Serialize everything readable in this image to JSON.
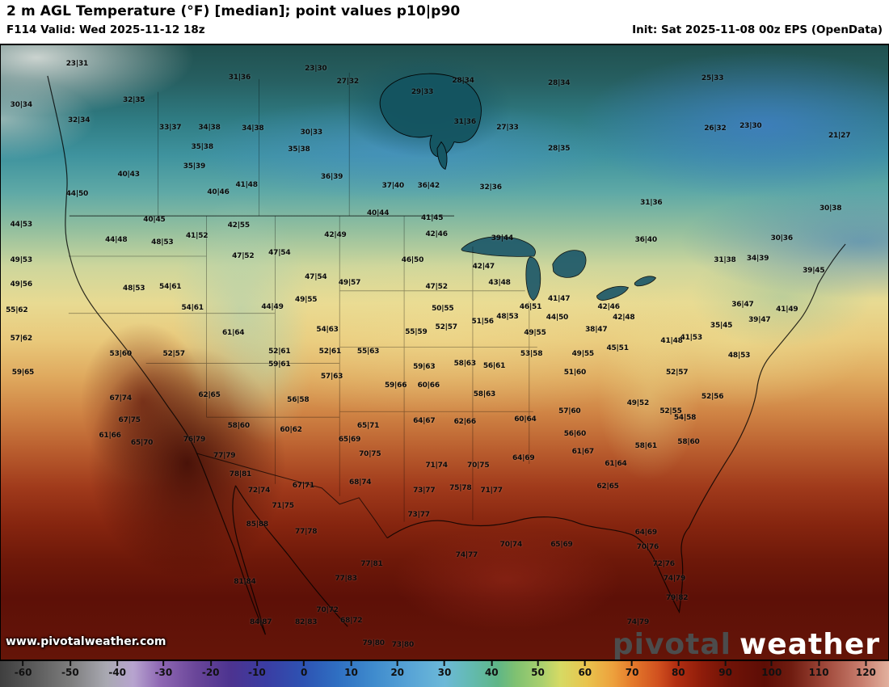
{
  "header": {
    "title": "2 m AGL Temperature (°F) [median]; point values p10|p90",
    "valid": "F114 Valid: Wed 2025-11-12 18z",
    "init": "Init: Sat 2025-11-08 00z EPS (OpenData)"
  },
  "map": {
    "watermark": "www.pivotalweather.com",
    "logo_pivotal": "pivotal",
    "logo_weather": "weather",
    "points": [
      {
        "x": 8.6,
        "y": 3.0,
        "v": "23|31"
      },
      {
        "x": 26.9,
        "y": 5.2,
        "v": "31|36"
      },
      {
        "x": 35.5,
        "y": 3.8,
        "v": "23|30"
      },
      {
        "x": 39.1,
        "y": 5.9,
        "v": "27|32"
      },
      {
        "x": 47.5,
        "y": 7.6,
        "v": "29|33"
      },
      {
        "x": 52.1,
        "y": 5.8,
        "v": "28|34"
      },
      {
        "x": 62.9,
        "y": 6.2,
        "v": "28|34"
      },
      {
        "x": 80.2,
        "y": 5.4,
        "v": "25|33"
      },
      {
        "x": 2.3,
        "y": 9.8,
        "v": "30|34"
      },
      {
        "x": 15.0,
        "y": 9.0,
        "v": "32|35"
      },
      {
        "x": 52.3,
        "y": 12.5,
        "v": "31|36"
      },
      {
        "x": 57.1,
        "y": 13.4,
        "v": "27|33"
      },
      {
        "x": 8.8,
        "y": 12.2,
        "v": "32|34"
      },
      {
        "x": 19.1,
        "y": 13.4,
        "v": "33|37"
      },
      {
        "x": 23.5,
        "y": 13.4,
        "v": "34|38"
      },
      {
        "x": 28.4,
        "y": 13.5,
        "v": "34|38"
      },
      {
        "x": 35.0,
        "y": 14.2,
        "v": "30|33"
      },
      {
        "x": 80.5,
        "y": 13.5,
        "v": "26|32"
      },
      {
        "x": 84.5,
        "y": 13.1,
        "v": "23|30"
      },
      {
        "x": 94.5,
        "y": 14.7,
        "v": "21|27"
      },
      {
        "x": 22.7,
        "y": 16.6,
        "v": "35|38"
      },
      {
        "x": 33.6,
        "y": 17.0,
        "v": "35|38"
      },
      {
        "x": 62.9,
        "y": 16.9,
        "v": "28|35"
      },
      {
        "x": 21.8,
        "y": 19.8,
        "v": "35|39"
      },
      {
        "x": 14.4,
        "y": 21.1,
        "v": "40|43"
      },
      {
        "x": 37.3,
        "y": 21.4,
        "v": "36|39"
      },
      {
        "x": 55.2,
        "y": 23.2,
        "v": "32|36"
      },
      {
        "x": 73.3,
        "y": 25.6,
        "v": "31|36"
      },
      {
        "x": 24.5,
        "y": 23.9,
        "v": "40|46"
      },
      {
        "x": 27.7,
        "y": 22.8,
        "v": "41|48"
      },
      {
        "x": 44.2,
        "y": 22.9,
        "v": "37|40"
      },
      {
        "x": 48.2,
        "y": 22.9,
        "v": "36|42"
      },
      {
        "x": 8.6,
        "y": 24.2,
        "v": "44|50"
      },
      {
        "x": 17.3,
        "y": 28.4,
        "v": "40|45"
      },
      {
        "x": 13.0,
        "y": 31.7,
        "v": "44|48"
      },
      {
        "x": 18.2,
        "y": 32.1,
        "v": "48|53"
      },
      {
        "x": 2.3,
        "y": 29.2,
        "v": "44|53"
      },
      {
        "x": 2.3,
        "y": 35.0,
        "v": "49|53"
      },
      {
        "x": 2.3,
        "y": 38.9,
        "v": "49|56"
      },
      {
        "x": 1.8,
        "y": 43.1,
        "v": "55|62"
      },
      {
        "x": 2.3,
        "y": 47.8,
        "v": "57|62"
      },
      {
        "x": 2.5,
        "y": 53.3,
        "v": "59|65"
      },
      {
        "x": 13.5,
        "y": 57.5,
        "v": "67|74"
      },
      {
        "x": 14.5,
        "y": 61.1,
        "v": "67|75"
      },
      {
        "x": 12.3,
        "y": 63.6,
        "v": "61|66"
      },
      {
        "x": 15.9,
        "y": 64.7,
        "v": "65|70"
      },
      {
        "x": 21.8,
        "y": 64.2,
        "v": "76|79"
      },
      {
        "x": 25.2,
        "y": 66.8,
        "v": "77|79"
      },
      {
        "x": 27.0,
        "y": 69.9,
        "v": "78|81"
      },
      {
        "x": 29.1,
        "y": 72.5,
        "v": "72|74"
      },
      {
        "x": 31.8,
        "y": 75.0,
        "v": "71|75"
      },
      {
        "x": 28.9,
        "y": 78.0,
        "v": "85|88"
      },
      {
        "x": 27.5,
        "y": 87.4,
        "v": "81|84"
      },
      {
        "x": 29.3,
        "y": 94.0,
        "v": "84|87"
      },
      {
        "x": 34.4,
        "y": 94.0,
        "v": "82|83"
      },
      {
        "x": 39.5,
        "y": 93.7,
        "v": "68|72"
      },
      {
        "x": 36.8,
        "y": 92.0,
        "v": "70|72"
      },
      {
        "x": 45.3,
        "y": 97.6,
        "v": "73|80"
      },
      {
        "x": 42.0,
        "y": 97.4,
        "v": "79|80"
      },
      {
        "x": 22.1,
        "y": 31.1,
        "v": "41|52"
      },
      {
        "x": 26.8,
        "y": 29.4,
        "v": "42|55"
      },
      {
        "x": 27.3,
        "y": 34.3,
        "v": "47|52"
      },
      {
        "x": 31.4,
        "y": 33.8,
        "v": "47|54"
      },
      {
        "x": 30.6,
        "y": 42.6,
        "v": "44|49"
      },
      {
        "x": 34.4,
        "y": 41.5,
        "v": "49|55"
      },
      {
        "x": 19.1,
        "y": 39.3,
        "v": "54|61"
      },
      {
        "x": 15.0,
        "y": 39.6,
        "v": "48|53"
      },
      {
        "x": 21.6,
        "y": 42.7,
        "v": "54|61"
      },
      {
        "x": 26.2,
        "y": 46.8,
        "v": "61|64"
      },
      {
        "x": 31.4,
        "y": 49.9,
        "v": "52|61"
      },
      {
        "x": 31.4,
        "y": 52.0,
        "v": "59|61"
      },
      {
        "x": 36.8,
        "y": 46.3,
        "v": "54|63"
      },
      {
        "x": 37.3,
        "y": 53.9,
        "v": "57|63"
      },
      {
        "x": 23.5,
        "y": 57.0,
        "v": "62|65"
      },
      {
        "x": 26.8,
        "y": 62.0,
        "v": "58|60"
      },
      {
        "x": 32.7,
        "y": 62.6,
        "v": "60|62"
      },
      {
        "x": 33.5,
        "y": 57.8,
        "v": "56|58"
      },
      {
        "x": 13.5,
        "y": 50.2,
        "v": "53|60"
      },
      {
        "x": 19.5,
        "y": 50.2,
        "v": "52|57"
      },
      {
        "x": 42.5,
        "y": 27.4,
        "v": "40|44"
      },
      {
        "x": 48.6,
        "y": 28.2,
        "v": "41|45"
      },
      {
        "x": 49.1,
        "y": 30.8,
        "v": "42|46"
      },
      {
        "x": 37.7,
        "y": 30.9,
        "v": "42|49"
      },
      {
        "x": 35.5,
        "y": 37.7,
        "v": "47|54"
      },
      {
        "x": 39.3,
        "y": 38.7,
        "v": "49|57"
      },
      {
        "x": 46.4,
        "y": 35.0,
        "v": "46|50"
      },
      {
        "x": 49.1,
        "y": 39.4,
        "v": "47|52"
      },
      {
        "x": 49.8,
        "y": 42.9,
        "v": "50|55"
      },
      {
        "x": 50.2,
        "y": 45.9,
        "v": "52|57"
      },
      {
        "x": 46.8,
        "y": 46.7,
        "v": "55|59"
      },
      {
        "x": 54.3,
        "y": 45.0,
        "v": "51|56"
      },
      {
        "x": 57.1,
        "y": 44.2,
        "v": "48|53"
      },
      {
        "x": 41.4,
        "y": 49.9,
        "v": "55|63"
      },
      {
        "x": 37.1,
        "y": 49.9,
        "v": "52|61"
      },
      {
        "x": 47.7,
        "y": 52.4,
        "v": "59|63"
      },
      {
        "x": 52.3,
        "y": 51.8,
        "v": "58|63"
      },
      {
        "x": 55.6,
        "y": 52.2,
        "v": "56|61"
      },
      {
        "x": 44.5,
        "y": 55.4,
        "v": "59|66"
      },
      {
        "x": 48.2,
        "y": 55.4,
        "v": "60|66"
      },
      {
        "x": 54.5,
        "y": 56.8,
        "v": "58|63"
      },
      {
        "x": 52.3,
        "y": 61.3,
        "v": "62|66"
      },
      {
        "x": 47.7,
        "y": 61.2,
        "v": "64|67"
      },
      {
        "x": 41.4,
        "y": 62.0,
        "v": "65|71"
      },
      {
        "x": 39.3,
        "y": 64.2,
        "v": "65|69"
      },
      {
        "x": 41.6,
        "y": 66.6,
        "v": "70|75"
      },
      {
        "x": 49.1,
        "y": 68.4,
        "v": "71|74"
      },
      {
        "x": 53.8,
        "y": 68.4,
        "v": "70|75"
      },
      {
        "x": 47.7,
        "y": 72.5,
        "v": "73|77"
      },
      {
        "x": 40.5,
        "y": 71.2,
        "v": "68|74"
      },
      {
        "x": 34.1,
        "y": 71.7,
        "v": "67|71"
      },
      {
        "x": 47.1,
        "y": 76.4,
        "v": "73|77"
      },
      {
        "x": 34.4,
        "y": 79.2,
        "v": "77|78"
      },
      {
        "x": 41.8,
        "y": 84.5,
        "v": "77|81"
      },
      {
        "x": 38.9,
        "y": 86.9,
        "v": "77|83"
      },
      {
        "x": 56.5,
        "y": 31.5,
        "v": "39|44"
      },
      {
        "x": 54.4,
        "y": 36.0,
        "v": "42|47"
      },
      {
        "x": 56.2,
        "y": 38.7,
        "v": "43|48"
      },
      {
        "x": 59.7,
        "y": 42.6,
        "v": "46|51"
      },
      {
        "x": 62.9,
        "y": 41.3,
        "v": "41|47"
      },
      {
        "x": 68.5,
        "y": 42.6,
        "v": "42|46"
      },
      {
        "x": 70.2,
        "y": 44.4,
        "v": "42|48"
      },
      {
        "x": 62.7,
        "y": 44.3,
        "v": "44|50"
      },
      {
        "x": 67.1,
        "y": 46.3,
        "v": "38|47"
      },
      {
        "x": 69.5,
        "y": 49.4,
        "v": "45|51"
      },
      {
        "x": 75.6,
        "y": 48.2,
        "v": "41|48"
      },
      {
        "x": 77.8,
        "y": 47.6,
        "v": "41|53"
      },
      {
        "x": 65.6,
        "y": 50.2,
        "v": "49|55"
      },
      {
        "x": 59.8,
        "y": 50.2,
        "v": "53|58"
      },
      {
        "x": 60.2,
        "y": 46.9,
        "v": "49|55"
      },
      {
        "x": 64.7,
        "y": 53.3,
        "v": "51|60"
      },
      {
        "x": 76.2,
        "y": 53.3,
        "v": "52|57"
      },
      {
        "x": 83.2,
        "y": 50.5,
        "v": "48|53"
      },
      {
        "x": 71.8,
        "y": 58.3,
        "v": "49|52"
      },
      {
        "x": 75.5,
        "y": 59.6,
        "v": "52|55"
      },
      {
        "x": 77.1,
        "y": 60.7,
        "v": "54|58"
      },
      {
        "x": 64.1,
        "y": 59.6,
        "v": "57|60"
      },
      {
        "x": 64.7,
        "y": 63.3,
        "v": "56|60"
      },
      {
        "x": 72.7,
        "y": 65.3,
        "v": "58|61"
      },
      {
        "x": 77.5,
        "y": 64.6,
        "v": "58|60"
      },
      {
        "x": 65.6,
        "y": 66.2,
        "v": "61|67"
      },
      {
        "x": 69.3,
        "y": 68.2,
        "v": "61|64"
      },
      {
        "x": 68.4,
        "y": 71.8,
        "v": "62|65"
      },
      {
        "x": 59.1,
        "y": 60.9,
        "v": "60|64"
      },
      {
        "x": 58.9,
        "y": 67.2,
        "v": "64|69"
      },
      {
        "x": 51.8,
        "y": 72.1,
        "v": "75|78"
      },
      {
        "x": 55.3,
        "y": 72.5,
        "v": "71|77"
      },
      {
        "x": 52.5,
        "y": 83.0,
        "v": "74|77"
      },
      {
        "x": 57.5,
        "y": 81.3,
        "v": "70|74"
      },
      {
        "x": 63.2,
        "y": 81.3,
        "v": "65|69"
      },
      {
        "x": 72.7,
        "y": 79.3,
        "v": "64|69"
      },
      {
        "x": 72.9,
        "y": 81.7,
        "v": "70|76"
      },
      {
        "x": 74.7,
        "y": 84.5,
        "v": "72|76"
      },
      {
        "x": 75.9,
        "y": 86.9,
        "v": "74|79"
      },
      {
        "x": 76.2,
        "y": 90.0,
        "v": "79|82"
      },
      {
        "x": 71.8,
        "y": 94.0,
        "v": "74|79"
      },
      {
        "x": 72.7,
        "y": 31.7,
        "v": "36|40"
      },
      {
        "x": 88.0,
        "y": 31.5,
        "v": "30|36"
      },
      {
        "x": 81.6,
        "y": 35.0,
        "v": "31|38"
      },
      {
        "x": 85.3,
        "y": 34.7,
        "v": "34|39"
      },
      {
        "x": 91.6,
        "y": 36.7,
        "v": "39|45"
      },
      {
        "x": 88.6,
        "y": 43.0,
        "v": "41|49"
      },
      {
        "x": 85.5,
        "y": 44.8,
        "v": "39|47"
      },
      {
        "x": 81.2,
        "y": 45.6,
        "v": "35|45"
      },
      {
        "x": 83.6,
        "y": 42.3,
        "v": "36|47"
      },
      {
        "x": 93.5,
        "y": 26.6,
        "v": "30|38"
      },
      {
        "x": 80.2,
        "y": 57.3,
        "v": "52|56"
      }
    ]
  },
  "colorbar": {
    "ticks": [
      {
        "label": "-60",
        "pos": 2.6
      },
      {
        "label": "-50",
        "pos": 7.9
      },
      {
        "label": "-40",
        "pos": 13.2
      },
      {
        "label": "-30",
        "pos": 18.4
      },
      {
        "label": "-20",
        "pos": 23.7
      },
      {
        "label": "-10",
        "pos": 28.9
      },
      {
        "label": "0",
        "pos": 34.2
      },
      {
        "label": "10",
        "pos": 39.5
      },
      {
        "label": "20",
        "pos": 44.7
      },
      {
        "label": "30",
        "pos": 50.0
      },
      {
        "label": "40",
        "pos": 55.3
      },
      {
        "label": "50",
        "pos": 60.5
      },
      {
        "label": "60",
        "pos": 65.8
      },
      {
        "label": "70",
        "pos": 71.1
      },
      {
        "label": "80",
        "pos": 76.3
      },
      {
        "label": "90",
        "pos": 81.6
      },
      {
        "label": "100",
        "pos": 86.8
      },
      {
        "label": "110",
        "pos": 92.1
      },
      {
        "label": "120",
        "pos": 97.4
      }
    ],
    "stops": [
      {
        "pct": 0,
        "color": "#3f3f3f"
      },
      {
        "pct": 4,
        "color": "#5c5c5c"
      },
      {
        "pct": 8,
        "color": "#7e7e7e"
      },
      {
        "pct": 12,
        "color": "#a9a9b2"
      },
      {
        "pct": 15,
        "color": "#b7a4cf"
      },
      {
        "pct": 18,
        "color": "#8f68b4"
      },
      {
        "pct": 22,
        "color": "#6a4699"
      },
      {
        "pct": 26,
        "color": "#4c3390"
      },
      {
        "pct": 30,
        "color": "#3a3da3"
      },
      {
        "pct": 34,
        "color": "#2e52b2"
      },
      {
        "pct": 38,
        "color": "#2f6fc2"
      },
      {
        "pct": 42,
        "color": "#3f8bcd"
      },
      {
        "pct": 46,
        "color": "#57a3d6"
      },
      {
        "pct": 50,
        "color": "#6cb9d8"
      },
      {
        "pct": 53,
        "color": "#63bab0"
      },
      {
        "pct": 56,
        "color": "#5fb687"
      },
      {
        "pct": 58,
        "color": "#7fc171"
      },
      {
        "pct": 61,
        "color": "#abd06e"
      },
      {
        "pct": 63,
        "color": "#d6da64"
      },
      {
        "pct": 66,
        "color": "#e9c44e"
      },
      {
        "pct": 69,
        "color": "#eda03c"
      },
      {
        "pct": 71,
        "color": "#e57c2c"
      },
      {
        "pct": 74,
        "color": "#d1511f"
      },
      {
        "pct": 76,
        "color": "#b32f12"
      },
      {
        "pct": 79,
        "color": "#8e1c0a"
      },
      {
        "pct": 82,
        "color": "#701307"
      },
      {
        "pct": 86,
        "color": "#5d0d05"
      },
      {
        "pct": 89,
        "color": "#6f1c10"
      },
      {
        "pct": 93,
        "color": "#a14a3c"
      },
      {
        "pct": 97,
        "color": "#c97f6f"
      },
      {
        "pct": 100,
        "color": "#e2b09e"
      }
    ]
  }
}
